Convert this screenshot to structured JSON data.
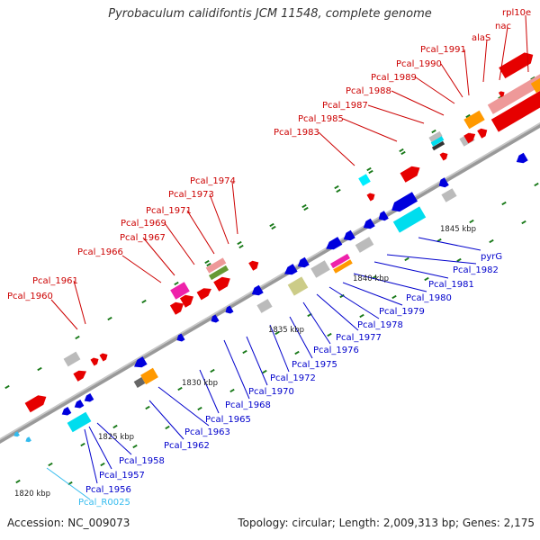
{
  "title": "Pyrobaculum calidifontis JCM 11548, complete genome",
  "footer": {
    "accession": "Accession: NC_009073",
    "summary": "Topology: circular; Length: 2,009,313 bp; Genes: 2,175"
  },
  "colors": {
    "forward_gene": "#e60000",
    "reverse_gene": "#0000dd",
    "forward_label": "#cc0000",
    "reverse_label": "#0000cc",
    "rna_label": "#33bbee",
    "tick": "#1a7a1a",
    "backbone": "#888888",
    "pseudo": "#bbbbbb",
    "orange": "#ff9900",
    "cyan": "#00ddee",
    "magenta": "#ee22aa",
    "pink": "#ee9999",
    "olive": "#cccc88"
  },
  "scale_labels": [
    "1820 kbp",
    "1825 kbp",
    "1830 kbp",
    "1835 kbp",
    "1840 kbp",
    "1845 kbp"
  ],
  "forward_labels": [
    "Pcal_1960",
    "Pcal_1961",
    "Pcal_1966",
    "Pcal_1967",
    "Pcal_1969",
    "Pcal_1971",
    "Pcal_1973",
    "Pcal_1974",
    "Pcal_1983",
    "Pcal_1985",
    "Pcal_1987",
    "Pcal_1988",
    "Pcal_1989",
    "Pcal_1990",
    "Pcal_1991",
    "alaS",
    "nac",
    "rpl10e"
  ],
  "reverse_labels": [
    "Pcal_1956",
    "Pcal_1957",
    "Pcal_1958",
    "Pcal_1962",
    "Pcal_1963",
    "Pcal_1965",
    "Pcal_1968",
    "Pcal_1970",
    "Pcal_1972",
    "Pcal_1975",
    "Pcal_1976",
    "Pcal_1977",
    "Pcal_1978",
    "Pcal_1979",
    "Pcal_1980",
    "Pcal_1981",
    "Pcal_1982",
    "pyrG"
  ],
  "rna_labels": [
    "Pcal_R0025"
  ]
}
